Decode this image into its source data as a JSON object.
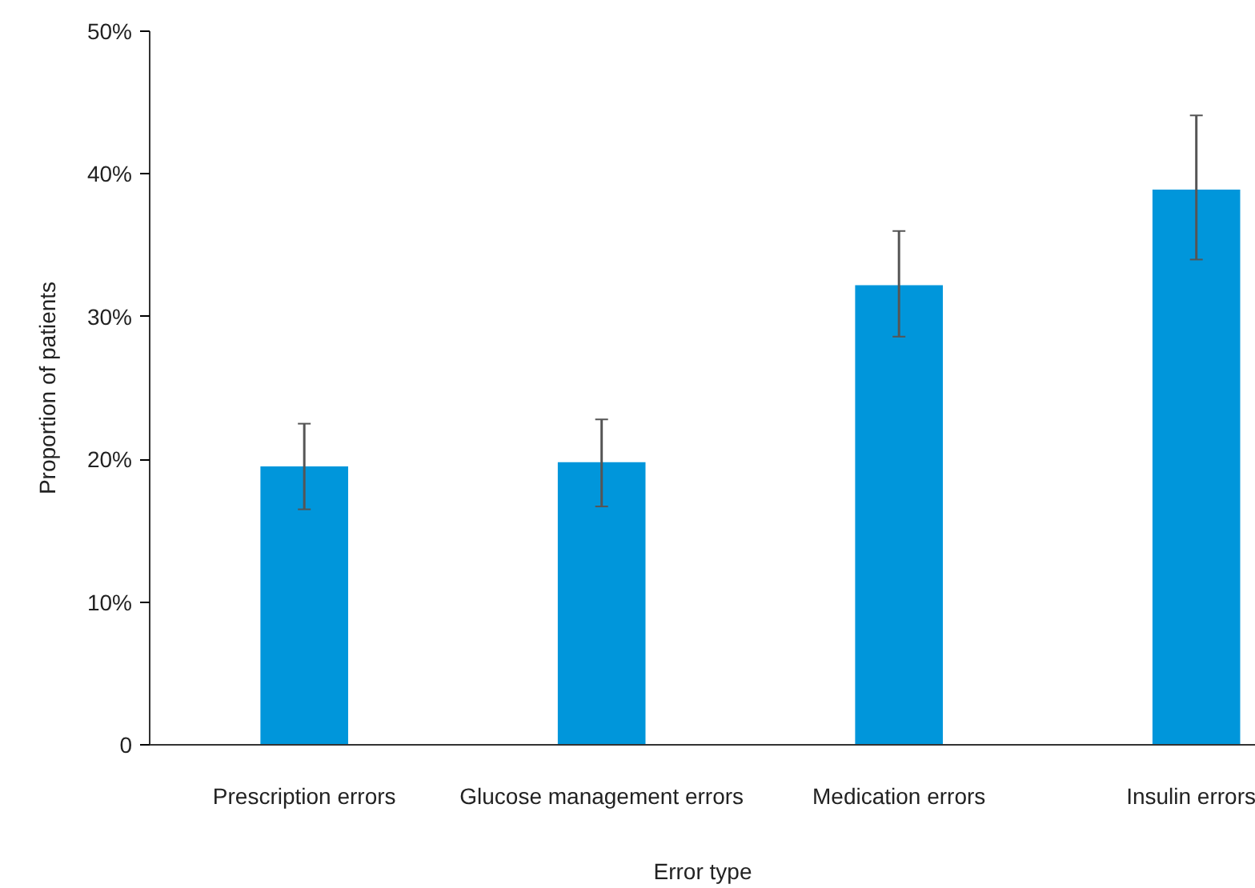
{
  "chart_data": {
    "type": "bar",
    "xlabel": "Error type",
    "ylabel": "Proportion of patients",
    "categories": [
      "Prescription errors",
      "Glucose management errors",
      "Medication errors",
      "Insulin errors"
    ],
    "values": [
      19.5,
      19.8,
      32.2,
      38.9
    ],
    "errors": [
      [
        16.5,
        22.5
      ],
      [
        16.7,
        22.8
      ],
      [
        28.6,
        36.0
      ],
      [
        34.0,
        44.1
      ]
    ],
    "color": "#0096db",
    "ylim": [
      0,
      50
    ],
    "yticks": [
      {
        "value": 0,
        "label": "0"
      },
      {
        "value": 10,
        "label": "10%"
      },
      {
        "value": 20,
        "label": "20%"
      },
      {
        "value": 30,
        "label": "30%"
      },
      {
        "value": 40,
        "label": "40%"
      },
      {
        "value": 50,
        "label": "50%"
      }
    ],
    "grid": false
  }
}
